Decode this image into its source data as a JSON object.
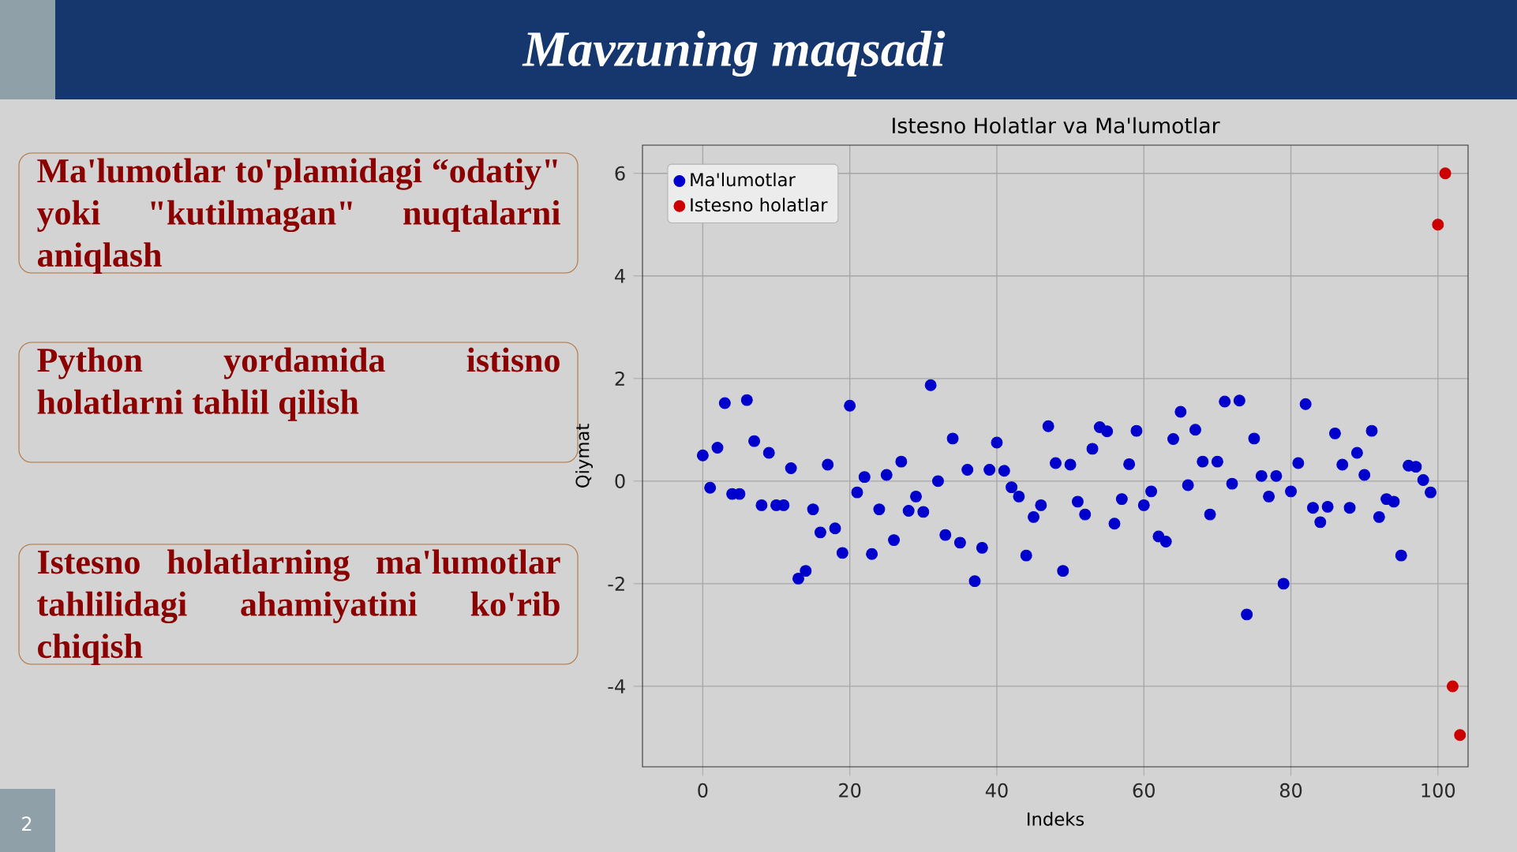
{
  "chart_data": {
    "type": "scatter",
    "title": "Istesno Holatlar va Ma'lumotlar",
    "xlabel": "Indeks",
    "ylabel": "Qiymat",
    "xlim": [
      -8.2,
      104.1
    ],
    "ylim": [
      -5.57,
      6.55
    ],
    "xticks": [
      0,
      20,
      40,
      60,
      80,
      100
    ],
    "yticks": [
      -4,
      -2,
      0,
      2,
      4,
      6
    ],
    "grid": true,
    "legend": "top left",
    "series": [
      {
        "name": "Ma'lumotlar",
        "color": "#0000cc",
        "x": [
          0,
          1,
          2,
          3,
          4,
          5,
          6,
          7,
          8,
          9,
          10,
          11,
          12,
          13,
          14,
          15,
          16,
          17,
          18,
          19,
          20,
          21,
          22,
          23,
          24,
          25,
          26,
          27,
          28,
          29,
          30,
          31,
          32,
          33,
          34,
          35,
          36,
          37,
          38,
          39,
          40,
          41,
          42,
          43,
          44,
          45,
          46,
          47,
          48,
          49,
          50,
          51,
          52,
          53,
          54,
          55,
          56,
          57,
          58,
          59,
          60,
          61,
          62,
          63,
          64,
          65,
          66,
          67,
          68,
          69,
          70,
          71,
          72,
          73,
          74,
          75,
          76,
          77,
          78,
          79,
          80,
          81,
          82,
          83,
          84,
          85,
          86,
          87,
          88,
          89,
          90,
          91,
          92,
          93,
          94,
          95,
          96,
          97,
          98,
          99
        ],
        "values": [
          0.5,
          -0.13,
          0.65,
          1.52,
          -0.25,
          -0.25,
          1.58,
          0.78,
          -0.47,
          0.55,
          -0.47,
          -0.47,
          0.25,
          -1.9,
          -1.75,
          -0.55,
          -1.0,
          0.32,
          -0.92,
          -1.4,
          1.47,
          -0.22,
          0.08,
          -1.42,
          -0.55,
          0.12,
          -1.15,
          0.38,
          -0.58,
          -0.3,
          -0.6,
          1.87,
          0.0,
          -1.05,
          0.83,
          -1.2,
          0.22,
          -1.95,
          -1.3,
          0.22,
          0.75,
          0.2,
          -0.12,
          -0.3,
          -1.45,
          -0.7,
          -0.47,
          1.07,
          0.35,
          -1.75,
          0.32,
          -0.4,
          -0.65,
          0.63,
          1.05,
          0.97,
          -0.83,
          -0.35,
          0.33,
          0.98,
          -0.47,
          -0.2,
          -1.08,
          -1.18,
          0.82,
          1.35,
          -0.08,
          1.0,
          0.38,
          -0.65,
          0.38,
          1.55,
          -0.05,
          1.57,
          -2.6,
          0.83,
          0.1,
          -0.3,
          0.1,
          -2.0,
          -0.2,
          0.35,
          1.5,
          -0.52,
          -0.8,
          -0.5,
          0.93,
          0.32,
          -0.52,
          0.55,
          0.12,
          0.98,
          -0.7,
          -0.35,
          -0.4,
          -1.45,
          0.3,
          0.28,
          0.02,
          -0.22
        ]
      },
      {
        "name": "Istesno holatlar",
        "color": "#cc0000",
        "x": [
          100,
          101,
          102,
          103
        ],
        "values": [
          5.0,
          6.0,
          -4.0,
          -4.95
        ]
      }
    ],
    "annotations": [
      "Mavzuning maqsadi",
      "Ma'lumotlar to'plamidagi “odatiy\" yoki \"kutilmagan\" nuqtalarni aniqlash",
      "Python yordamida istisno holatlarni tahlil qilish",
      "Istesno holatlarning ma'lumotlar tahlilidagi ahamiyatini ko'rib chiqish",
      "2"
    ]
  }
}
